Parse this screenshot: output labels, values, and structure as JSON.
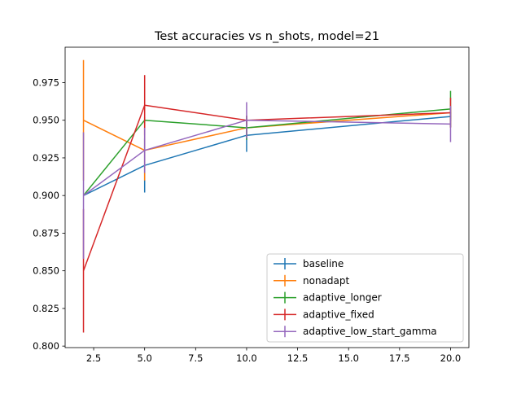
{
  "chart_data": {
    "type": "line",
    "title": "Test accuracies vs n_shots, model=21",
    "xlabel": "",
    "ylabel": "",
    "xlim": [
      1.1,
      20.9
    ],
    "ylim": [
      0.799,
      0.9985
    ],
    "xticks": [
      2.5,
      5.0,
      7.5,
      10.0,
      12.5,
      15.0,
      17.5,
      20.0
    ],
    "xtick_labels": [
      "2.5",
      "5.0",
      "7.5",
      "10.0",
      "12.5",
      "15.0",
      "17.5",
      "20.0"
    ],
    "yticks": [
      0.8,
      0.825,
      0.85,
      0.875,
      0.9,
      0.925,
      0.95,
      0.975
    ],
    "ytick_labels": [
      "0.800",
      "0.825",
      "0.850",
      "0.875",
      "0.900",
      "0.925",
      "0.950",
      "0.975"
    ],
    "grid": false,
    "legend_position": "lower-right",
    "x": [
      2,
      5,
      10,
      20
    ],
    "series": [
      {
        "name": "baseline",
        "color": "#1f77b4",
        "values": [
          0.9,
          0.92,
          0.94,
          0.9525
        ],
        "errors": [
          0.0,
          0.018,
          0.011,
          0.003
        ]
      },
      {
        "name": "nonadapt",
        "color": "#ff7f0e",
        "values": [
          0.95,
          0.93,
          0.945,
          0.955
        ],
        "errors": [
          0.04,
          0.02,
          0.006,
          0.004
        ]
      },
      {
        "name": "adaptive_longer",
        "color": "#2ca02c",
        "values": [
          0.9,
          0.95,
          0.945,
          0.9575
        ],
        "errors": [
          0.0,
          0.002,
          0.008,
          0.012
        ]
      },
      {
        "name": "adaptive_fixed",
        "color": "#d62728",
        "values": [
          0.85,
          0.96,
          0.95,
          0.955
        ],
        "errors": [
          0.041,
          0.02,
          0.003,
          0.01
        ]
      },
      {
        "name": "adaptive_low_start_gamma",
        "color": "#9467bd",
        "values": [
          0.9,
          0.93,
          0.95,
          0.9475
        ],
        "errors": [
          0.042,
          0.015,
          0.012,
          0.012
        ]
      }
    ]
  }
}
